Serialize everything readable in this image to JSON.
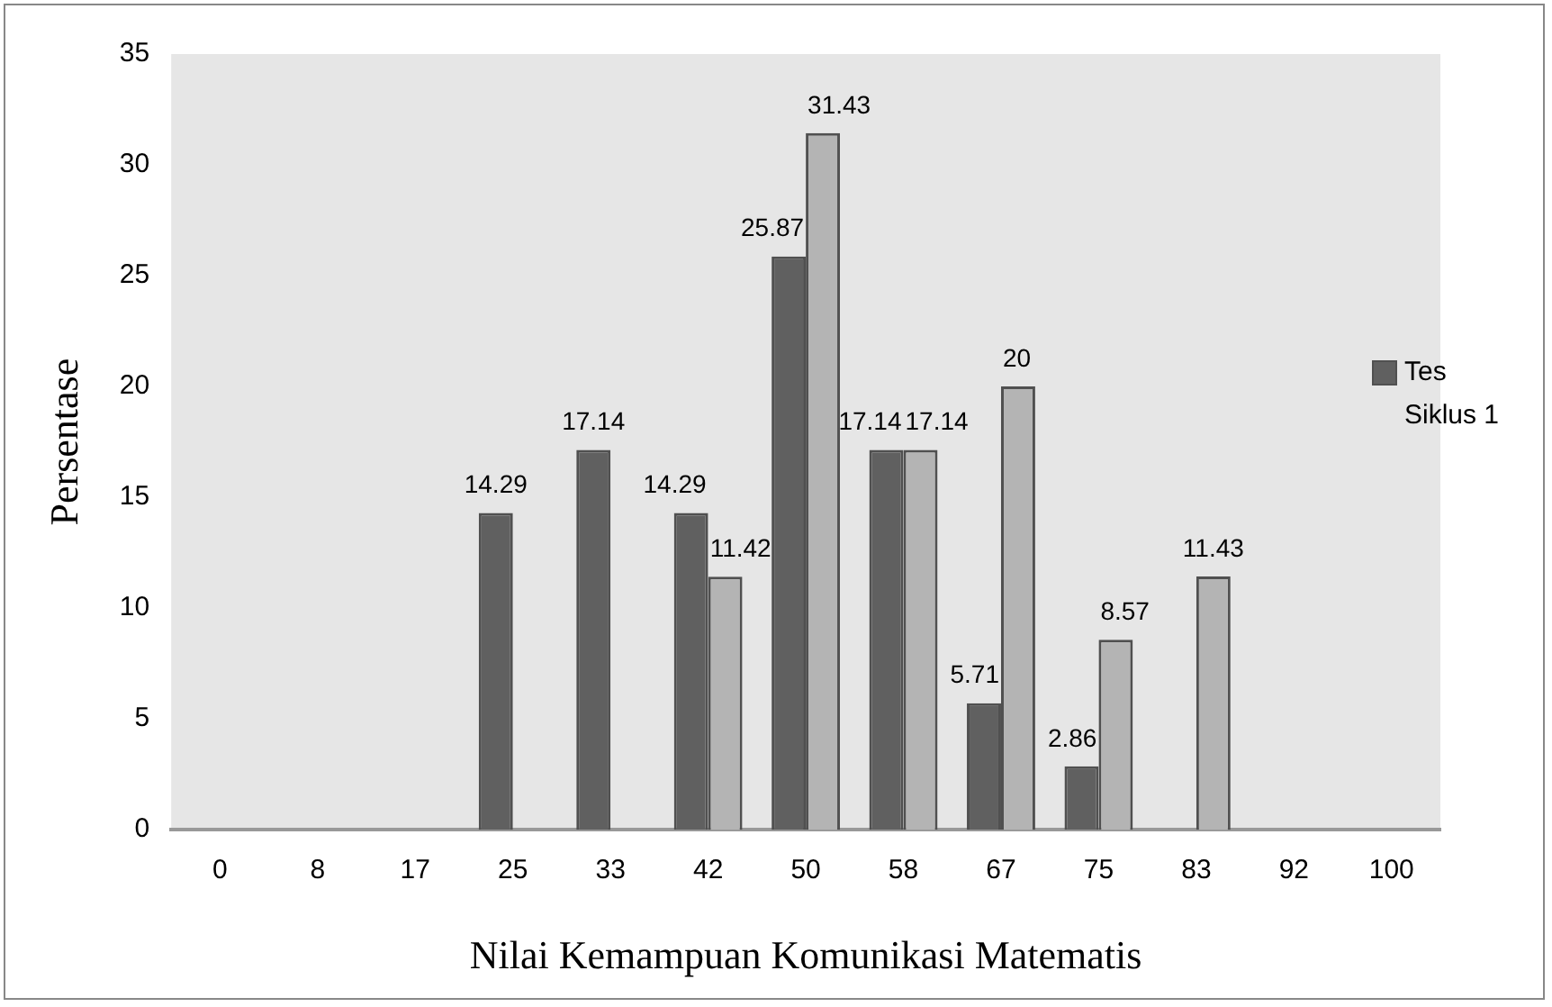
{
  "chart_data": {
    "type": "bar",
    "xlabel": "Nilai Kemampuan Komunikasi Matematis",
    "ylabel": "Persentase",
    "categories": [
      "0",
      "8",
      "17",
      "25",
      "33",
      "42",
      "50",
      "58",
      "67",
      "75",
      "83",
      "92",
      "100"
    ],
    "series": [
      {
        "name": "Tes Siklus 1",
        "color": "#606060",
        "values": [
          null,
          null,
          null,
          14.29,
          17.14,
          14.29,
          25.87,
          17.14,
          5.71,
          2.86,
          null,
          null,
          null
        ]
      },
      {
        "color": "#b4b4b4",
        "values": [
          null,
          null,
          null,
          null,
          null,
          11.42,
          31.43,
          17.14,
          20,
          8.57,
          11.43,
          null,
          null
        ]
      }
    ],
    "ylim": [
      0,
      35
    ],
    "yticks": [
      0,
      5,
      10,
      15,
      20,
      25,
      30,
      35
    ],
    "grid": false,
    "legend": "right",
    "data_labels": true
  }
}
